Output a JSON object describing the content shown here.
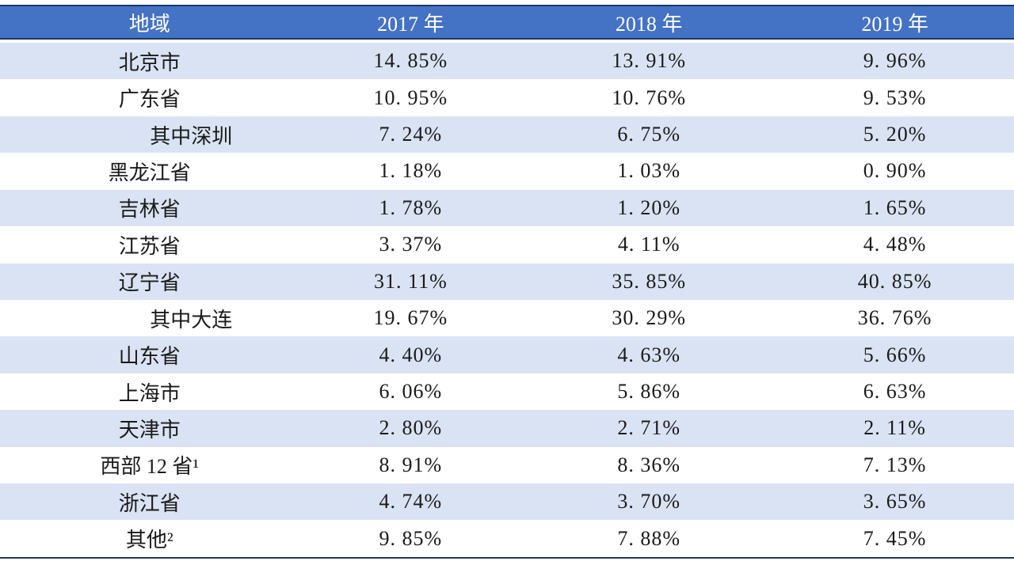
{
  "table": {
    "columns": [
      "地域",
      "2017 年",
      "2018 年",
      "2019 年"
    ],
    "rows": [
      {
        "region": "北京市",
        "indent": false,
        "y2017": "14. 85%",
        "y2018": "13. 91%",
        "y2019": "9. 96%"
      },
      {
        "region": "广东省",
        "indent": false,
        "y2017": "10. 95%",
        "y2018": "10. 76%",
        "y2019": "9. 53%"
      },
      {
        "region": "其中深圳",
        "indent": true,
        "y2017": "7. 24%",
        "y2018": "6. 75%",
        "y2019": "5. 20%"
      },
      {
        "region": "黑龙江省",
        "indent": false,
        "y2017": "1. 18%",
        "y2018": "1. 03%",
        "y2019": "0. 90%"
      },
      {
        "region": "吉林省",
        "indent": false,
        "y2017": "1. 78%",
        "y2018": "1. 20%",
        "y2019": "1. 65%"
      },
      {
        "region": "江苏省",
        "indent": false,
        "y2017": "3. 37%",
        "y2018": "4. 11%",
        "y2019": "4. 48%"
      },
      {
        "region": "辽宁省",
        "indent": false,
        "y2017": "31. 11%",
        "y2018": "35. 85%",
        "y2019": "40. 85%"
      },
      {
        "region": "其中大连",
        "indent": true,
        "y2017": "19. 67%",
        "y2018": "30. 29%",
        "y2019": "36. 76%"
      },
      {
        "region": "山东省",
        "indent": false,
        "y2017": "4. 40%",
        "y2018": "4. 63%",
        "y2019": "5. 66%"
      },
      {
        "region": "上海市",
        "indent": false,
        "y2017": "6. 06%",
        "y2018": "5. 86%",
        "y2019": "6. 63%"
      },
      {
        "region": "天津市",
        "indent": false,
        "y2017": "2. 80%",
        "y2018": "2. 71%",
        "y2019": "2. 11%"
      },
      {
        "region": "西部 12 省¹",
        "indent": false,
        "y2017": "8. 91%",
        "y2018": "8. 36%",
        "y2019": "7. 13%"
      },
      {
        "region": "浙江省",
        "indent": false,
        "y2017": "4. 74%",
        "y2018": "3. 70%",
        "y2019": "3. 65%"
      },
      {
        "region": "其他²",
        "indent": false,
        "y2017": "9. 85%",
        "y2018": "7. 88%",
        "y2019": "7. 45%"
      }
    ]
  },
  "colors": {
    "header_bg": "#4472c4",
    "header_text": "#ffffff",
    "band_bg": "#dae3f3",
    "rule": "#1f3864",
    "body_text": "#1a1a1a"
  },
  "chart_data": {
    "type": "table",
    "title": "",
    "categories": [
      "北京市",
      "广东省",
      "其中深圳",
      "黑龙江省",
      "吉林省",
      "江苏省",
      "辽宁省",
      "其中大连",
      "山东省",
      "上海市",
      "天津市",
      "西部 12 省",
      "浙江省",
      "其他"
    ],
    "series": [
      {
        "name": "2017 年",
        "values": [
          14.85,
          10.95,
          7.24,
          1.18,
          1.78,
          3.37,
          31.11,
          19.67,
          4.4,
          6.06,
          2.8,
          8.91,
          4.74,
          9.85
        ]
      },
      {
        "name": "2018 年",
        "values": [
          13.91,
          10.76,
          6.75,
          1.03,
          1.2,
          4.11,
          35.85,
          30.29,
          4.63,
          5.86,
          2.71,
          8.36,
          3.7,
          7.88
        ]
      },
      {
        "name": "2019 年",
        "values": [
          9.96,
          9.53,
          5.2,
          0.9,
          1.65,
          4.48,
          40.85,
          36.76,
          5.66,
          6.63,
          2.11,
          7.13,
          3.65,
          7.45
        ]
      }
    ],
    "unit": "%"
  }
}
